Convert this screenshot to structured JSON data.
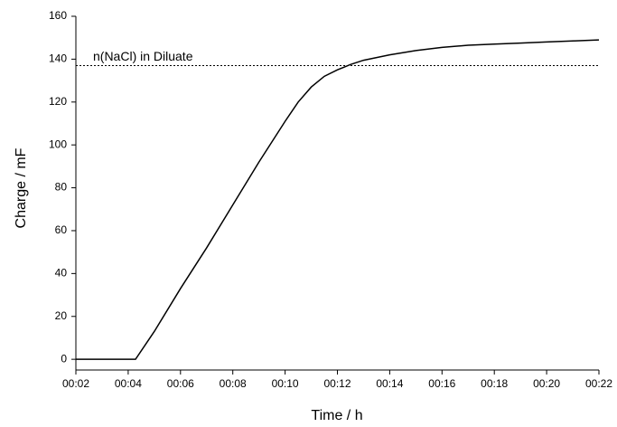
{
  "chart_data": {
    "type": "line",
    "x_label": "Time / h",
    "y_label": "Charge / mF",
    "x": [
      2,
      4.28,
      5,
      6,
      7,
      8,
      9,
      10,
      10.5,
      11,
      11.5,
      12,
      12.5,
      13,
      14,
      15,
      16,
      17,
      18,
      19,
      20,
      21,
      22
    ],
    "values": [
      0,
      0,
      13,
      33,
      52,
      72,
      92,
      111,
      120,
      127,
      132,
      135,
      137.5,
      139.5,
      142,
      144,
      145.5,
      146.5,
      147,
      147.5,
      148,
      148.5,
      149
    ],
    "color": "#000000",
    "xlim": [
      2,
      22
    ],
    "xticks": [
      {
        "value": 2,
        "label": "00:02"
      },
      {
        "value": 4,
        "label": "00:04"
      },
      {
        "value": 6,
        "label": "00:06"
      },
      {
        "value": 8,
        "label": "00:08"
      },
      {
        "value": 10,
        "label": "00:10"
      },
      {
        "value": 12,
        "label": "00:12"
      },
      {
        "value": 14,
        "label": "00:14"
      },
      {
        "value": 16,
        "label": "00:16"
      },
      {
        "value": 18,
        "label": "00:18"
      },
      {
        "value": 20,
        "label": "00:20"
      },
      {
        "value": 22,
        "label": "00:22"
      }
    ],
    "ylim": [
      -5,
      160
    ],
    "yticks": [
      0,
      20,
      40,
      60,
      80,
      100,
      120,
      140,
      160
    ],
    "reference_line": {
      "value": 137,
      "label": "n(NaCl) in Diluate"
    }
  }
}
